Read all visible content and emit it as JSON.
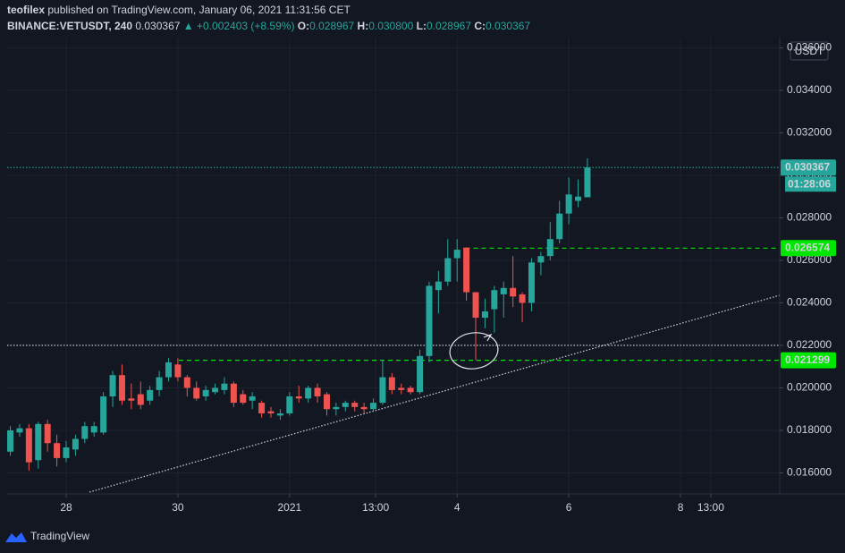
{
  "header": {
    "author": "teofilex",
    "published": "published on TradingView.com, January 06, 2021 11:31:56 CET",
    "symbol": "BINANCE:VETUSDT, 240",
    "last": "0.030367",
    "arrow": "▲",
    "change": "+0.002403 (+8.59%)",
    "o_label": "O:",
    "o": "0.028967",
    "h_label": "H:",
    "h": "0.030800",
    "l_label": "L:",
    "l": "0.028967",
    "c_label": "C:",
    "c": "0.030367"
  },
  "footer": {
    "brand": "TradingView"
  },
  "chart_data": {
    "type": "candlestick",
    "unit": "USDT",
    "countdown": "01:28:06",
    "up_color": "#26a69a",
    "down_color": "#ef5350",
    "grid": true,
    "x": [
      0,
      1,
      2,
      3,
      4,
      5,
      6,
      7,
      8,
      9,
      10,
      11,
      12,
      13,
      14,
      15,
      16,
      17,
      18,
      19,
      20,
      21,
      22,
      23,
      24,
      25,
      26,
      27,
      28,
      29,
      30,
      31,
      32,
      33,
      34,
      35,
      36,
      37,
      38,
      39,
      40,
      41,
      42,
      43,
      44,
      45,
      46,
      47,
      48,
      49,
      50,
      51,
      52,
      53,
      54,
      55,
      56,
      57,
      58,
      59,
      60,
      61,
      62
    ],
    "open": [
      0.017,
      0.0179,
      0.0181,
      0.0166,
      0.0183,
      0.0174,
      0.0167,
      0.0171,
      0.0176,
      0.0179,
      0.0179,
      0.0196,
      0.0206,
      0.0195,
      0.0197,
      0.0194,
      0.0199,
      0.0205,
      0.0211,
      0.0205,
      0.02,
      0.0196,
      0.0198,
      0.0199,
      0.0202,
      0.0197,
      0.0194,
      0.0193,
      0.0189,
      0.0187,
      0.0188,
      0.0196,
      0.0195,
      0.02,
      0.0197,
      0.019,
      0.0191,
      0.0193,
      0.0191,
      0.019,
      0.0193,
      0.0205,
      0.02,
      0.02,
      0.0198,
      0.0215,
      0.0246,
      0.025,
      0.0261,
      0.0266,
      0.0245,
      0.0233,
      0.0237,
      0.0244,
      0.0247,
      0.0244,
      0.024,
      0.0259,
      0.0262,
      0.027,
      0.0282,
      0.0288,
      0.028967
    ],
    "high": [
      0.0182,
      0.0183,
      0.0183,
      0.0184,
      0.0185,
      0.0178,
      0.0175,
      0.0178,
      0.0184,
      0.0184,
      0.0198,
      0.0208,
      0.0211,
      0.0202,
      0.0203,
      0.0201,
      0.0208,
      0.0214,
      0.0214,
      0.0206,
      0.0203,
      0.0201,
      0.0202,
      0.0205,
      0.0203,
      0.0199,
      0.0198,
      0.0194,
      0.0191,
      0.019,
      0.0198,
      0.0201,
      0.0201,
      0.0202,
      0.0198,
      0.0193,
      0.0194,
      0.0194,
      0.0193,
      0.0195,
      0.0213,
      0.0207,
      0.0202,
      0.0201,
      0.0218,
      0.025,
      0.0255,
      0.027,
      0.027,
      0.0266,
      0.0245,
      0.0242,
      0.0248,
      0.025,
      0.0262,
      0.0245,
      0.0261,
      0.0264,
      0.0278,
      0.0288,
      0.0299,
      0.0298,
      0.0308
    ],
    "low": [
      0.0168,
      0.0177,
      0.0161,
      0.0162,
      0.017,
      0.0163,
      0.0165,
      0.0168,
      0.0174,
      0.0177,
      0.0178,
      0.0191,
      0.0192,
      0.019,
      0.019,
      0.0192,
      0.0196,
      0.0203,
      0.0203,
      0.0196,
      0.0194,
      0.0194,
      0.0197,
      0.0197,
      0.0191,
      0.0192,
      0.019,
      0.0186,
      0.0186,
      0.0185,
      0.0187,
      0.0193,
      0.0193,
      0.0193,
      0.0187,
      0.0187,
      0.0189,
      0.0189,
      0.0188,
      0.0189,
      0.0192,
      0.0197,
      0.0197,
      0.0197,
      0.0197,
      0.0212,
      0.0235,
      0.0248,
      0.025,
      0.0241,
      0.0213,
      0.0228,
      0.0226,
      0.0233,
      0.0238,
      0.0231,
      0.0236,
      0.0253,
      0.026,
      0.0268,
      0.0277,
      0.0285,
      0.028967
    ],
    "close": [
      0.018,
      0.0181,
      0.0165,
      0.0183,
      0.0174,
      0.0167,
      0.0172,
      0.0176,
      0.0182,
      0.0182,
      0.0196,
      0.0206,
      0.0194,
      0.0194,
      0.0192,
      0.0199,
      0.0205,
      0.0212,
      0.0205,
      0.02,
      0.0195,
      0.0199,
      0.02,
      0.0202,
      0.0193,
      0.0193,
      0.0196,
      0.0188,
      0.0188,
      0.0188,
      0.0196,
      0.0195,
      0.02,
      0.0196,
      0.019,
      0.0191,
      0.0193,
      0.0191,
      0.019,
      0.0193,
      0.0205,
      0.0199,
      0.0199,
      0.0198,
      0.0215,
      0.0248,
      0.025,
      0.0261,
      0.0265,
      0.0245,
      0.0233,
      0.0236,
      0.0246,
      0.0247,
      0.0243,
      0.024,
      0.0259,
      0.0262,
      0.027,
      0.0282,
      0.0291,
      0.029,
      0.030367
    ],
    "xlim": [
      -0.34,
      82.66
    ],
    "ylim": [
      0.01501,
      0.03648
    ],
    "xticks": [
      {
        "value": 6,
        "label": "28"
      },
      {
        "value": 18,
        "label": "30"
      },
      {
        "value": 30,
        "label": "2021"
      },
      {
        "value": 39.25,
        "label": "13:00"
      },
      {
        "value": 48,
        "label": "4"
      },
      {
        "value": 60,
        "label": "6"
      },
      {
        "value": 72,
        "label": "8"
      },
      {
        "value": 75.25,
        "label": "13:00"
      }
    ],
    "yticks": [
      {
        "value": 0.016,
        "label": "0.016000"
      },
      {
        "value": 0.018,
        "label": "0.018000"
      },
      {
        "value": 0.02,
        "label": "0.020000"
      },
      {
        "value": 0.022,
        "label": "0.022000"
      },
      {
        "value": 0.024,
        "label": "0.024000"
      },
      {
        "value": 0.026,
        "label": "0.026000"
      },
      {
        "value": 0.028,
        "label": "0.028000"
      },
      {
        "value": 0.03,
        "label": "0.030000"
      },
      {
        "value": 0.032,
        "label": "0.032000"
      },
      {
        "value": 0.034,
        "label": "0.034000"
      },
      {
        "value": 0.036,
        "label": "0.036000"
      }
    ],
    "price_lines": [
      {
        "value": 0.030367,
        "color": "#26a69a",
        "style": "dotted",
        "x_start": -0.34,
        "labeled": true
      },
      {
        "value": 0.026574,
        "color": "#00e600",
        "style": "dashed",
        "x_start": 48.9,
        "labeled": true
      },
      {
        "value": 0.021299,
        "color": "#00e600",
        "style": "dashed",
        "x_start": 18.1,
        "labeled": true
      },
      {
        "value": 0.022,
        "color": "#d1d4dc",
        "style": "dotted",
        "x_start": -0.34,
        "labeled": false
      }
    ],
    "trendline": {
      "x": [
        8.5,
        82.66
      ],
      "y": [
        0.015095,
        0.024358
      ]
    }
  }
}
